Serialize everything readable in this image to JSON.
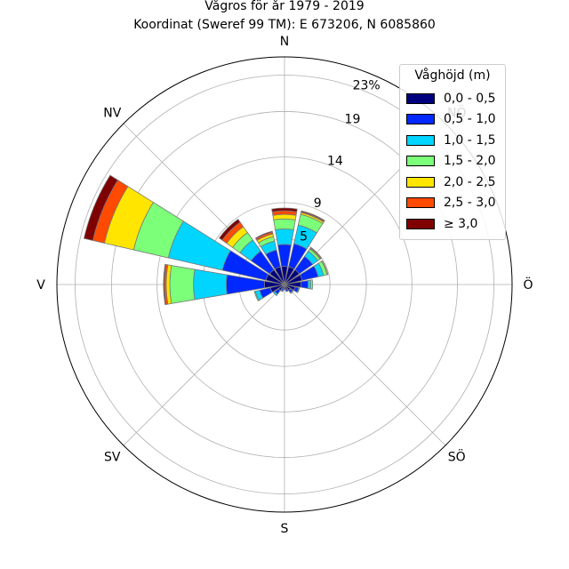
{
  "title": "Vågros för år 1979 - 2019",
  "subtitle": "Koordinat (Sweref 99 TM): E 673206, N 6085860",
  "chart_data": {
    "type": "windrose",
    "title": "Vågros för år 1979 - 2019",
    "subtitle": "Koordinat (Sweref 99 TM): E 673206, N 6085860",
    "unit": "%",
    "rmax": 25,
    "radial_ticks": [
      5,
      9,
      14,
      19,
      23
    ],
    "radial_tick_labels": [
      "5",
      "9",
      "14",
      "19",
      "23%"
    ],
    "direction_labels": [
      "N",
      "NV",
      "V",
      "SV",
      "S",
      "SÖ",
      "Ö",
      "NÖ"
    ],
    "direction_angles": [
      0,
      315,
      270,
      225,
      180,
      135,
      90,
      45
    ],
    "legend_title": "Våghöjd (m)",
    "legend_position": "upper-right",
    "categories": [
      "0,0 - 0,5",
      "0,5 - 1,0",
      "1,0 - 1,5",
      "1,5 - 2,0",
      "2,0 - 2,5",
      "2,5 - 3,0",
      "≥ 3,0"
    ],
    "colors": [
      "#00007f",
      "#0028ff",
      "#00d5ff",
      "#7cff79",
      "#ffe500",
      "#ff4a00",
      "#7f0000"
    ],
    "sectors": [
      {
        "dir": 0,
        "values": [
          2.0,
          2.4,
          1.7,
          1.1,
          0.5,
          0.4,
          0.3
        ]
      },
      {
        "dir": 22.5,
        "values": [
          2.0,
          2.6,
          2.1,
          1.2,
          0.2,
          0.1,
          0.1
        ]
      },
      {
        "dir": 45,
        "values": [
          2.0,
          1.8,
          0.7,
          0.3,
          0.1,
          0.1,
          0.0
        ]
      },
      {
        "dir": 67.5,
        "values": [
          2.0,
          1.8,
          0.6,
          0.4,
          0.1,
          0.0,
          0.0
        ]
      },
      {
        "dir": 90,
        "values": [
          1.8,
          0.8,
          0.3,
          0.2,
          0.0,
          0.0,
          0.0
        ]
      },
      {
        "dir": 112.5,
        "values": [
          1.2,
          0.4,
          0.1,
          0.0,
          0.0,
          0.0,
          0.0
        ]
      },
      {
        "dir": 135,
        "values": [
          0.8,
          0.3,
          0.1,
          0.0,
          0.0,
          0.0,
          0.0
        ]
      },
      {
        "dir": 157.5,
        "values": [
          0.6,
          0.2,
          0.0,
          0.0,
          0.0,
          0.0,
          0.0
        ]
      },
      {
        "dir": 180,
        "values": [
          0.5,
          0.1,
          0.0,
          0.0,
          0.0,
          0.0,
          0.0
        ]
      },
      {
        "dir": 202.5,
        "values": [
          0.5,
          0.2,
          0.1,
          0.0,
          0.0,
          0.0,
          0.0
        ]
      },
      {
        "dir": 225,
        "values": [
          0.8,
          0.5,
          0.2,
          0.0,
          0.0,
          0.0,
          0.0
        ]
      },
      {
        "dir": 247.5,
        "values": [
          1.6,
          1.2,
          0.5,
          0.1,
          0.0,
          0.0,
          0.0
        ]
      },
      {
        "dir": 270,
        "values": [
          2.2,
          4.2,
          3.6,
          2.6,
          0.4,
          0.2,
          0.1
        ]
      },
      {
        "dir": 292.5,
        "values": [
          2.1,
          4.9,
          6.1,
          3.9,
          3.3,
          1.3,
          1.0
        ]
      },
      {
        "dir": 315,
        "values": [
          2.0,
          2.5,
          1.5,
          1.0,
          0.8,
          0.6,
          0.4
        ]
      },
      {
        "dir": 337.5,
        "values": [
          2.0,
          1.9,
          1.0,
          0.5,
          0.3,
          0.2,
          0.1
        ]
      }
    ]
  }
}
